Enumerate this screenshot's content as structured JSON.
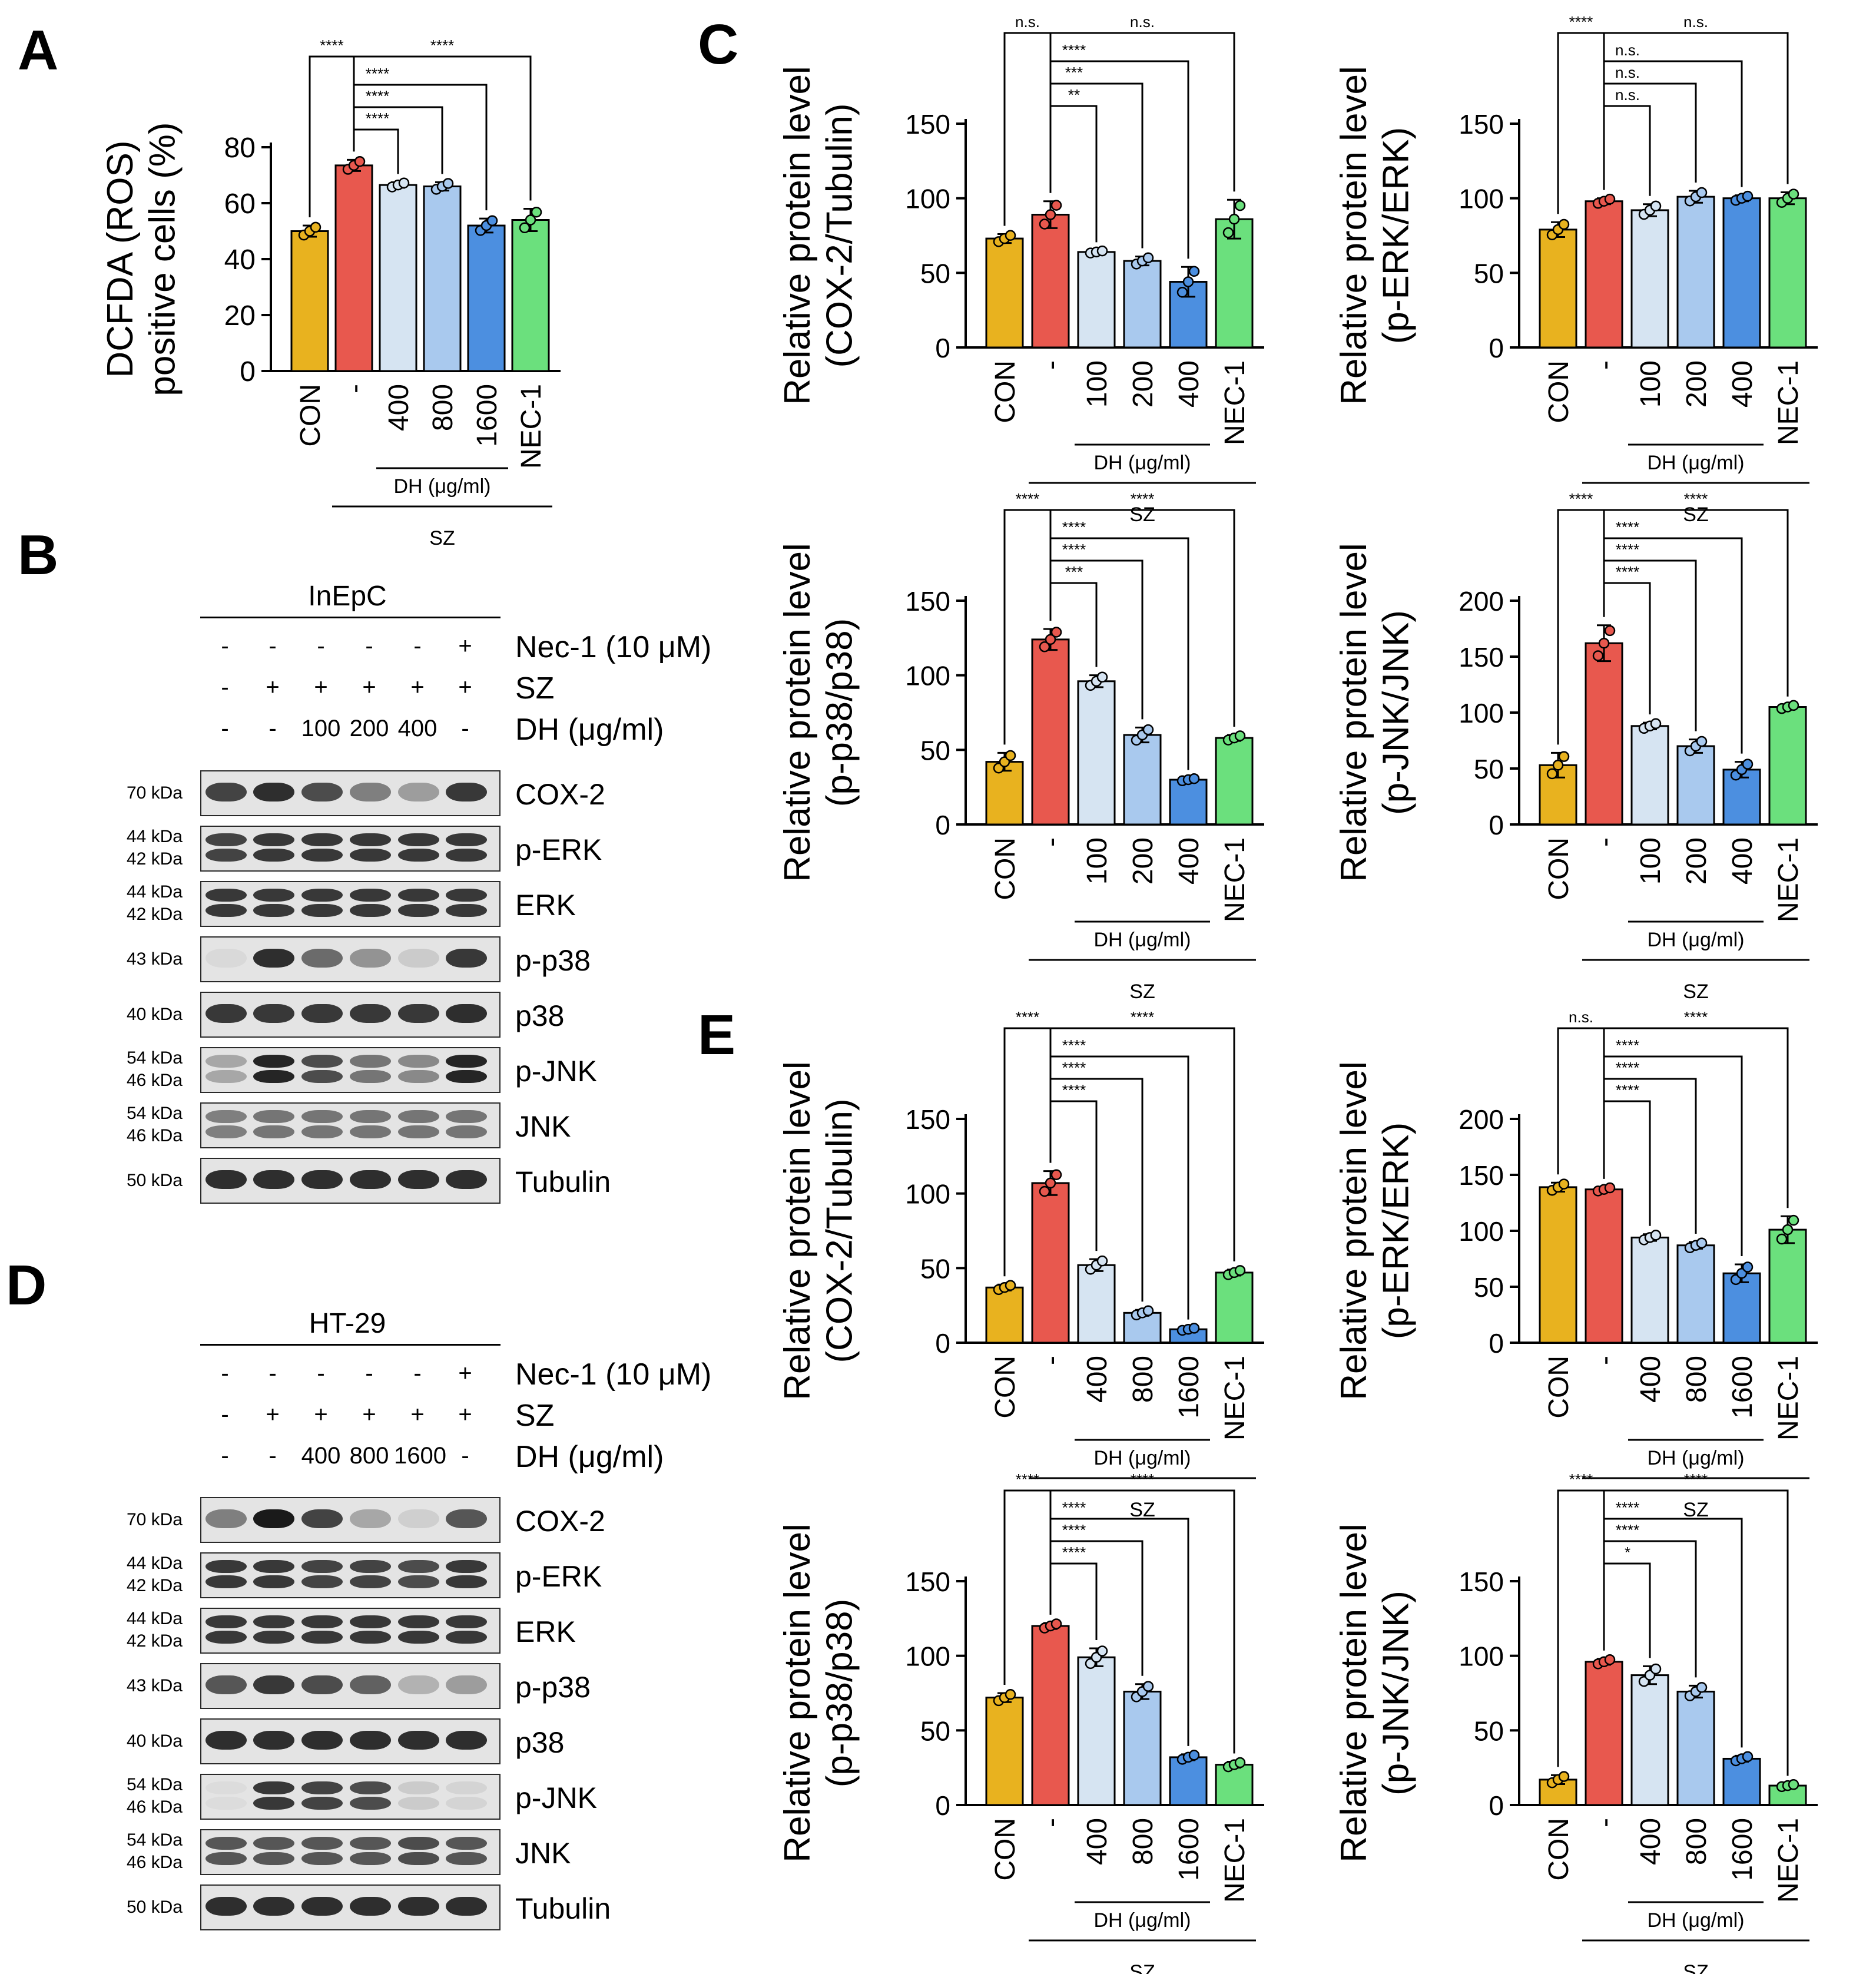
{
  "colors": {
    "con": "#E8B21F",
    "sz": "#E8584E",
    "dh_light": "#D6E4F2",
    "dh_mid": "#A9C9EE",
    "dh_dark": "#4C8FE0",
    "nec": "#6BE07D"
  },
  "panel_letters": {
    "a": "A",
    "b": "B",
    "c": "C",
    "d": "D",
    "e": "E"
  },
  "chart_data": [
    {
      "id": "A",
      "type": "bar",
      "title": "",
      "ylabel_lines": [
        "DCFDA (ROS)",
        "positive cells (%)"
      ],
      "categories": [
        "CON",
        "-",
        "400",
        "800",
        "1600",
        "NEC-1"
      ],
      "values": [
        50,
        73.5,
        66.5,
        66,
        52,
        54
      ],
      "errors": [
        2,
        2,
        1,
        1.5,
        2.5,
        4
      ],
      "fill_keys": [
        "con",
        "sz",
        "dh_light",
        "dh_mid",
        "dh_dark",
        "nec"
      ],
      "ylim": [
        0,
        80
      ],
      "yticks": [
        "0",
        "20",
        "40",
        "60",
        "80"
      ],
      "dh_label": "DH (μg/ml)",
      "sz_label": "SZ",
      "comparisons": [
        {
          "from": 1,
          "to": 0,
          "label": "****"
        },
        {
          "from": 1,
          "to": 2,
          "label": "****"
        },
        {
          "from": 1,
          "to": 3,
          "label": "****"
        },
        {
          "from": 1,
          "to": 4,
          "label": "****"
        },
        {
          "from": 1,
          "to": 5,
          "label": "****"
        }
      ]
    },
    {
      "id": "C1",
      "type": "bar",
      "ylabel_lines": [
        "Relative protein level",
        "(COX-2/Tubulin)"
      ],
      "categories": [
        "CON",
        "-",
        "100",
        "200",
        "400",
        "NEC-1"
      ],
      "values": [
        73,
        89,
        64,
        58,
        44,
        86
      ],
      "errors": [
        3,
        9,
        1,
        3,
        10,
        13
      ],
      "fill_keys": [
        "con",
        "sz",
        "dh_light",
        "dh_mid",
        "dh_dark",
        "nec"
      ],
      "ylim": [
        0,
        150
      ],
      "yticks": [
        "0",
        "50",
        "100",
        "150"
      ],
      "dh_label": "DH (μg/ml)",
      "sz_label": "SZ",
      "comparisons": [
        {
          "from": 1,
          "to": 0,
          "label": "n.s."
        },
        {
          "from": 1,
          "to": 2,
          "label": "**"
        },
        {
          "from": 1,
          "to": 3,
          "label": "***"
        },
        {
          "from": 1,
          "to": 4,
          "label": "****"
        },
        {
          "from": 1,
          "to": 5,
          "label": "n.s."
        }
      ]
    },
    {
      "id": "C2",
      "type": "bar",
      "ylabel_lines": [
        "Relative protein level",
        "(p-ERK/ERK)"
      ],
      "categories": [
        "CON",
        "-",
        "100",
        "200",
        "400",
        "NEC-1"
      ],
      "values": [
        79,
        98,
        92,
        101,
        100,
        100
      ],
      "errors": [
        5,
        2,
        4,
        4,
        2,
        4
      ],
      "fill_keys": [
        "con",
        "sz",
        "dh_light",
        "dh_mid",
        "dh_dark",
        "nec"
      ],
      "ylim": [
        0,
        150
      ],
      "yticks": [
        "0",
        "50",
        "100",
        "150"
      ],
      "dh_label": "DH (μg/ml)",
      "sz_label": "SZ",
      "comparisons": [
        {
          "from": 1,
          "to": 0,
          "label": "****"
        },
        {
          "from": 1,
          "to": 2,
          "label": "n.s."
        },
        {
          "from": 1,
          "to": 3,
          "label": "n.s."
        },
        {
          "from": 1,
          "to": 4,
          "label": "n.s."
        },
        {
          "from": 1,
          "to": 5,
          "label": "n.s."
        }
      ]
    },
    {
      "id": "C3",
      "type": "bar",
      "ylabel_lines": [
        "Relative protein level",
        "(p-p38/p38)"
      ],
      "categories": [
        "CON",
        "-",
        "100",
        "200",
        "400",
        "NEC-1"
      ],
      "values": [
        42,
        124,
        96,
        60,
        30,
        58
      ],
      "errors": [
        6,
        7,
        4,
        5,
        1,
        2
      ],
      "fill_keys": [
        "con",
        "sz",
        "dh_light",
        "dh_mid",
        "dh_dark",
        "nec"
      ],
      "ylim": [
        0,
        150
      ],
      "yticks": [
        "0",
        "50",
        "100",
        "150"
      ],
      "dh_label": "DH (μg/ml)",
      "sz_label": "SZ",
      "comparisons": [
        {
          "from": 1,
          "to": 0,
          "label": "****"
        },
        {
          "from": 1,
          "to": 2,
          "label": "***"
        },
        {
          "from": 1,
          "to": 3,
          "label": "****"
        },
        {
          "from": 1,
          "to": 4,
          "label": "****"
        },
        {
          "from": 1,
          "to": 5,
          "label": "****"
        }
      ]
    },
    {
      "id": "C4",
      "type": "bar",
      "ylabel_lines": [
        "Relative protein level",
        "(p-JNK/JNK)"
      ],
      "categories": [
        "CON",
        "-",
        "100",
        "200",
        "400",
        "NEC-1"
      ],
      "values": [
        53,
        162,
        88,
        70,
        49,
        105
      ],
      "errors": [
        11,
        16,
        3,
        6,
        7,
        2
      ],
      "fill_keys": [
        "con",
        "sz",
        "dh_light",
        "dh_mid",
        "dh_dark",
        "nec"
      ],
      "ylim": [
        0,
        200
      ],
      "yticks": [
        "0",
        "50",
        "100",
        "150",
        "200"
      ],
      "dh_label": "DH (μg/ml)",
      "sz_label": "SZ",
      "comparisons": [
        {
          "from": 1,
          "to": 0,
          "label": "****"
        },
        {
          "from": 1,
          "to": 2,
          "label": "****"
        },
        {
          "from": 1,
          "to": 3,
          "label": "****"
        },
        {
          "from": 1,
          "to": 4,
          "label": "****"
        },
        {
          "from": 1,
          "to": 5,
          "label": "****"
        }
      ]
    },
    {
      "id": "E1",
      "type": "bar",
      "ylabel_lines": [
        "Relative protein level",
        "(COX-2/Tubulin)"
      ],
      "categories": [
        "CON",
        "-",
        "400",
        "800",
        "1600",
        "NEC-1"
      ],
      "values": [
        37,
        107,
        52,
        20,
        9,
        47
      ],
      "errors": [
        2,
        8,
        4,
        2,
        1,
        2
      ],
      "fill_keys": [
        "con",
        "sz",
        "dh_light",
        "dh_mid",
        "dh_dark",
        "nec"
      ],
      "ylim": [
        0,
        150
      ],
      "yticks": [
        "0",
        "50",
        "100",
        "150"
      ],
      "dh_label": "DH (μg/ml)",
      "sz_label": "SZ",
      "comparisons": [
        {
          "from": 1,
          "to": 0,
          "label": "****"
        },
        {
          "from": 1,
          "to": 2,
          "label": "****"
        },
        {
          "from": 1,
          "to": 3,
          "label": "****"
        },
        {
          "from": 1,
          "to": 4,
          "label": "****"
        },
        {
          "from": 1,
          "to": 5,
          "label": "****"
        }
      ]
    },
    {
      "id": "E2",
      "type": "bar",
      "ylabel_lines": [
        "Relative protein level",
        "(p-ERK/ERK)"
      ],
      "categories": [
        "CON",
        "-",
        "400",
        "800",
        "1600",
        "NEC-1"
      ],
      "values": [
        139,
        137,
        94,
        87,
        62,
        101
      ],
      "errors": [
        4,
        2,
        3,
        3,
        8,
        12
      ],
      "fill_keys": [
        "con",
        "sz",
        "dh_light",
        "dh_mid",
        "dh_dark",
        "nec"
      ],
      "ylim": [
        0,
        200
      ],
      "yticks": [
        "0",
        "50",
        "100",
        "150",
        "200"
      ],
      "dh_label": "DH (μg/ml)",
      "sz_label": "SZ",
      "comparisons": [
        {
          "from": 1,
          "to": 0,
          "label": "n.s."
        },
        {
          "from": 1,
          "to": 2,
          "label": "****"
        },
        {
          "from": 1,
          "to": 3,
          "label": "****"
        },
        {
          "from": 1,
          "to": 4,
          "label": "****"
        },
        {
          "from": 1,
          "to": 5,
          "label": "****"
        }
      ]
    },
    {
      "id": "E3",
      "type": "bar",
      "ylabel_lines": [
        "Relative protein level",
        "(p-p38/p38)"
      ],
      "categories": [
        "CON",
        "-",
        "400",
        "800",
        "1600",
        "NEC-1"
      ],
      "values": [
        72,
        120,
        99,
        76,
        32,
        27
      ],
      "errors": [
        3,
        2,
        6,
        5,
        2,
        2
      ],
      "fill_keys": [
        "con",
        "sz",
        "dh_light",
        "dh_mid",
        "dh_dark",
        "nec"
      ],
      "ylim": [
        0,
        150
      ],
      "yticks": [
        "0",
        "50",
        "100",
        "150"
      ],
      "dh_label": "DH (μg/ml)",
      "sz_label": "SZ",
      "comparisons": [
        {
          "from": 1,
          "to": 0,
          "label": "****"
        },
        {
          "from": 1,
          "to": 2,
          "label": "****"
        },
        {
          "from": 1,
          "to": 3,
          "label": "****"
        },
        {
          "from": 1,
          "to": 4,
          "label": "****"
        },
        {
          "from": 1,
          "to": 5,
          "label": "****"
        }
      ]
    },
    {
      "id": "E4",
      "type": "bar",
      "ylabel_lines": [
        "Relative protein level",
        "(p-JNK/JNK)"
      ],
      "categories": [
        "CON",
        "-",
        "400",
        "800",
        "1600",
        "NEC-1"
      ],
      "values": [
        17,
        96,
        87,
        76,
        31,
        13
      ],
      "errors": [
        3,
        2,
        6,
        4,
        2,
        1
      ],
      "fill_keys": [
        "con",
        "sz",
        "dh_light",
        "dh_mid",
        "dh_dark",
        "nec"
      ],
      "ylim": [
        0,
        150
      ],
      "yticks": [
        "0",
        "50",
        "100",
        "150"
      ],
      "dh_label": "DH (μg/ml)",
      "sz_label": "SZ",
      "comparisons": [
        {
          "from": 1,
          "to": 0,
          "label": "****"
        },
        {
          "from": 1,
          "to": 2,
          "label": "*"
        },
        {
          "from": 1,
          "to": 3,
          "label": "****"
        },
        {
          "from": 1,
          "to": 4,
          "label": "****"
        },
        {
          "from": 1,
          "to": 5,
          "label": "****"
        }
      ]
    }
  ],
  "blots": [
    {
      "id": "B",
      "cell_line": "InEpC",
      "rows": [
        {
          "label": "Nec-1 (10 μM)",
          "values": [
            "-",
            "-",
            "-",
            "-",
            "-",
            "+"
          ]
        },
        {
          "label": "SZ",
          "values": [
            "-",
            "+",
            "+",
            "+",
            "+",
            "+"
          ]
        },
        {
          "label": "DH (μg/ml)",
          "values": [
            "-",
            "-",
            "100",
            "200",
            "400",
            "-"
          ]
        }
      ],
      "strips": [
        {
          "protein": "COX-2",
          "kda": [
            "70 kDa"
          ],
          "intensity": [
            0.8,
            0.9,
            0.75,
            0.5,
            0.35,
            0.85
          ]
        },
        {
          "protein": "p-ERK",
          "kda": [
            "44 kDa",
            "42 kDa"
          ],
          "intensity": [
            0.8,
            0.85,
            0.85,
            0.85,
            0.85,
            0.85
          ]
        },
        {
          "protein": "ERK",
          "kda": [
            "44 kDa",
            "42 kDa"
          ],
          "intensity": [
            0.85,
            0.85,
            0.85,
            0.85,
            0.85,
            0.85
          ]
        },
        {
          "protein": "p-p38",
          "kda": [
            "43 kDa"
          ],
          "intensity": [
            0.05,
            0.9,
            0.6,
            0.4,
            0.12,
            0.85
          ]
        },
        {
          "protein": "p38",
          "kda": [
            "40 kDa"
          ],
          "intensity": [
            0.85,
            0.85,
            0.85,
            0.85,
            0.85,
            0.9
          ]
        },
        {
          "protein": "p-JNK",
          "kda": [
            "54 kDa",
            "46 kDa"
          ],
          "intensity": [
            0.3,
            0.95,
            0.75,
            0.55,
            0.45,
            0.95
          ]
        },
        {
          "protein": "JNK",
          "kda": [
            "54 kDa",
            "46 kDa"
          ],
          "intensity": [
            0.5,
            0.55,
            0.55,
            0.55,
            0.55,
            0.55
          ]
        },
        {
          "protein": "Tubulin",
          "kda": [
            "50 kDa"
          ],
          "intensity": [
            0.9,
            0.9,
            0.9,
            0.9,
            0.9,
            0.9
          ]
        }
      ]
    },
    {
      "id": "D",
      "cell_line": "HT-29",
      "rows": [
        {
          "label": "Nec-1 (10 μM)",
          "values": [
            "-",
            "-",
            "-",
            "-",
            "-",
            "+"
          ]
        },
        {
          "label": "SZ",
          "values": [
            "-",
            "+",
            "+",
            "+",
            "+",
            "+"
          ]
        },
        {
          "label": "DH (μg/ml)",
          "values": [
            "-",
            "-",
            "400",
            "800",
            "1600",
            "-"
          ]
        }
      ],
      "strips": [
        {
          "protein": "COX-2",
          "kda": [
            "70 kDa"
          ],
          "intensity": [
            0.5,
            1.0,
            0.8,
            0.3,
            0.1,
            0.7
          ]
        },
        {
          "protein": "p-ERK",
          "kda": [
            "44 kDa",
            "42 kDa"
          ],
          "intensity": [
            0.85,
            0.85,
            0.8,
            0.8,
            0.75,
            0.85
          ]
        },
        {
          "protein": "ERK",
          "kda": [
            "44 kDa",
            "42 kDa"
          ],
          "intensity": [
            0.85,
            0.85,
            0.85,
            0.85,
            0.85,
            0.85
          ]
        },
        {
          "protein": "p-p38",
          "kda": [
            "43 kDa"
          ],
          "intensity": [
            0.7,
            0.85,
            0.75,
            0.65,
            0.25,
            0.35
          ]
        },
        {
          "protein": "p38",
          "kda": [
            "40 kDa"
          ],
          "intensity": [
            0.9,
            0.9,
            0.9,
            0.9,
            0.9,
            0.9
          ]
        },
        {
          "protein": "p-JNK",
          "kda": [
            "54 kDa",
            "46 kDa"
          ],
          "intensity": [
            0.03,
            0.85,
            0.8,
            0.75,
            0.12,
            0.08
          ]
        },
        {
          "protein": "JNK",
          "kda": [
            "54 kDa",
            "46 kDa"
          ],
          "intensity": [
            0.7,
            0.7,
            0.7,
            0.7,
            0.75,
            0.7
          ]
        },
        {
          "protein": "Tubulin",
          "kda": [
            "50 kDa"
          ],
          "intensity": [
            0.9,
            0.9,
            0.9,
            0.9,
            0.9,
            0.9
          ]
        }
      ]
    }
  ]
}
